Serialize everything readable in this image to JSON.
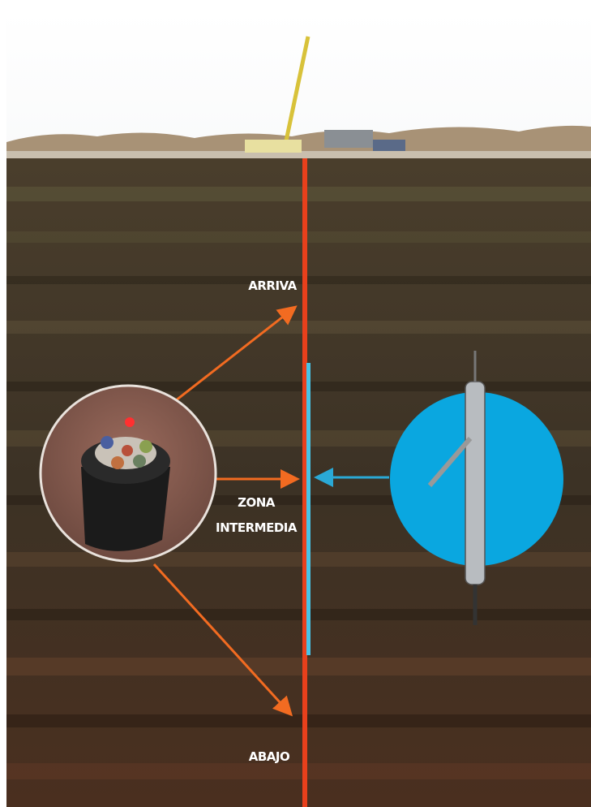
{
  "labels": {
    "top": "ARRIVA",
    "middle": [
      "ZONA",
      "INTERMEDIA"
    ],
    "bottom": "ABAJO"
  }
}
